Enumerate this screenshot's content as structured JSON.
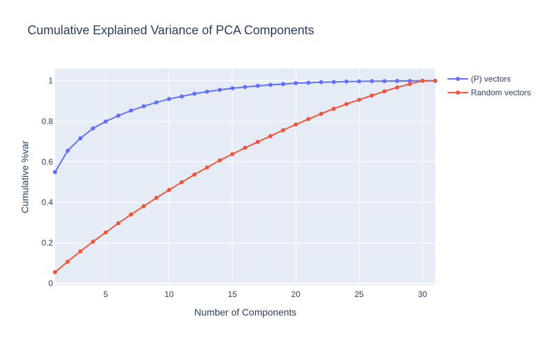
{
  "chart_data": {
    "type": "line",
    "title": "Cumulative Explained Variance of PCA Components",
    "xlabel": "Number of Components",
    "ylabel": "Cumulative %var",
    "xlim": [
      1,
      31
    ],
    "ylim": [
      -0.01,
      1.06
    ],
    "x_ticks": [
      5,
      10,
      15,
      20,
      25,
      30
    ],
    "y_ticks": [
      0,
      0.2,
      0.4,
      0.6,
      0.8,
      1
    ],
    "y_tick_labels": [
      "0",
      "0.2",
      "0.4",
      "0.6",
      "0.8",
      "1"
    ],
    "x": [
      1,
      2,
      3,
      4,
      5,
      6,
      7,
      8,
      9,
      10,
      11,
      12,
      13,
      14,
      15,
      16,
      17,
      18,
      19,
      20,
      21,
      22,
      23,
      24,
      25,
      26,
      27,
      28,
      29,
      30,
      31
    ],
    "grid": true,
    "legend_position": "top-right-outside",
    "series": [
      {
        "name": "(P) vectors",
        "color": "#636efa",
        "values": [
          0.549,
          0.655,
          0.716,
          0.765,
          0.799,
          0.828,
          0.853,
          0.874,
          0.893,
          0.91,
          0.923,
          0.936,
          0.946,
          0.955,
          0.963,
          0.969,
          0.975,
          0.98,
          0.984,
          0.988,
          0.99,
          0.993,
          0.994,
          0.996,
          0.997,
          0.998,
          0.998,
          0.999,
          0.999,
          1.0,
          1.0
        ]
      },
      {
        "name": "Random vectors",
        "color": "#ef553b",
        "values": [
          0.055,
          0.107,
          0.158,
          0.206,
          0.251,
          0.297,
          0.34,
          0.381,
          0.422,
          0.461,
          0.499,
          0.537,
          0.572,
          0.607,
          0.638,
          0.669,
          0.698,
          0.727,
          0.756,
          0.784,
          0.811,
          0.837,
          0.862,
          0.885,
          0.906,
          0.927,
          0.948,
          0.967,
          0.984,
          1.0,
          1.0
        ]
      }
    ]
  }
}
